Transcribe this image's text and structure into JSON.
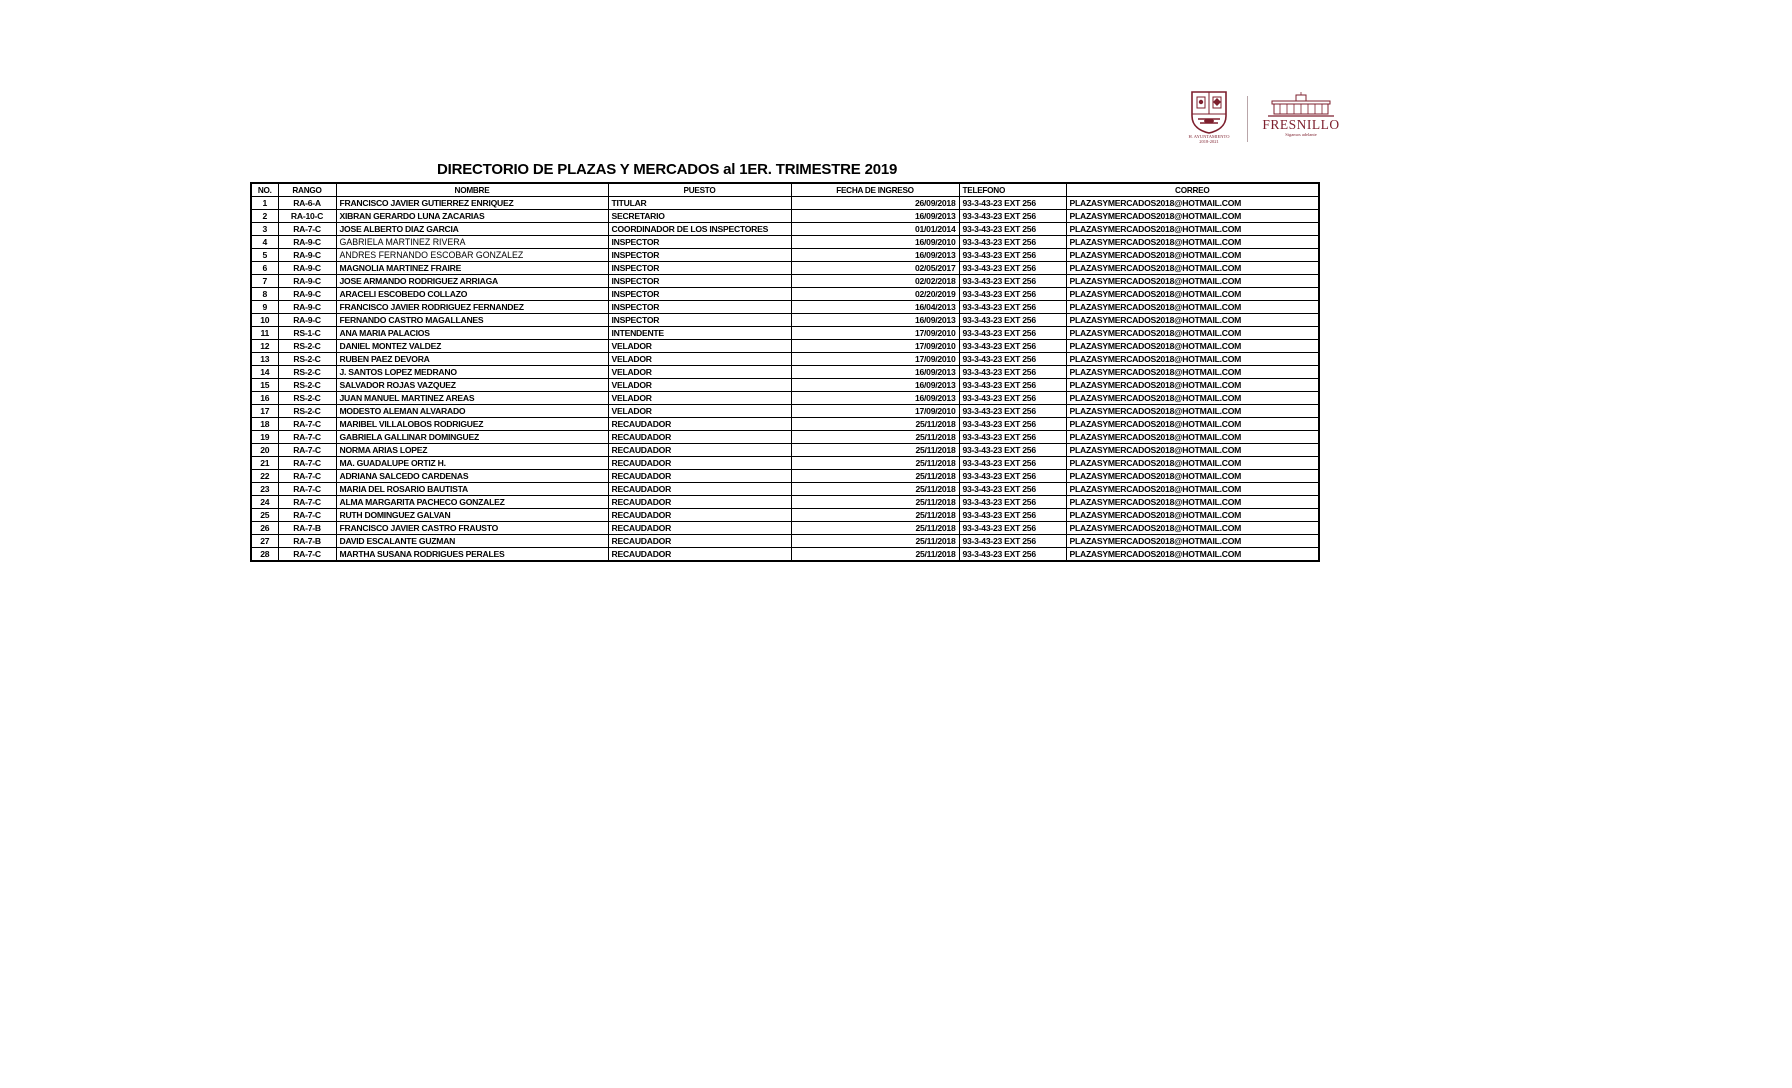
{
  "branding": {
    "brand_color": "#7d1f2d",
    "crest_icon": "municipal-coat-of-arms",
    "crest_caption_line1": "H. AYUNTAMIENTO",
    "crest_caption_line2": "2018-2021",
    "fresnillo_wordmark": "FRESNILLO",
    "fresnillo_tagline": "Sigamos adelante"
  },
  "title": "DIRECTORIO DE PLAZAS Y MERCADOS al 1ER. TRIMESTRE 2019",
  "table": {
    "columns": [
      "NO.",
      "RANGO",
      "NOMBRE",
      "PUESTO",
      "FECHA DE INGRESO",
      "TELEFONO",
      "CORREO"
    ],
    "rows": [
      {
        "no": "1",
        "rango": "RA-6-A",
        "nombre": "FRANCISCO JAVIER GUTIERREZ ENRIQUEZ",
        "puesto": "TITULAR",
        "fecha": "26/09/2018",
        "telefono": "93-3-43-23 EXT 256",
        "correo": "PLAZASYMERCADOS2018@HOTMAIL.COM",
        "light": false
      },
      {
        "no": "2",
        "rango": "RA-10-C",
        "nombre": "XIBRAN GERARDO LUNA ZACARIAS",
        "puesto": "SECRETARIO",
        "fecha": "16/09/2013",
        "telefono": "93-3-43-23 EXT 256",
        "correo": "PLAZASYMERCADOS2018@HOTMAIL.COM",
        "light": false
      },
      {
        "no": "3",
        "rango": "RA-7-C",
        "nombre": "JOSE ALBERTO DIAZ GARCIA",
        "puesto": "COORDINADOR DE LOS INSPECTORES",
        "fecha": "01/01/2014",
        "telefono": "93-3-43-23 EXT 256",
        "correo": "PLAZASYMERCADOS2018@HOTMAIL.COM",
        "light": false
      },
      {
        "no": "4",
        "rango": "RA-9-C",
        "nombre": "GABRIELA MARTINEZ RIVERA",
        "puesto": "INSPECTOR",
        "fecha": "16/09/2010",
        "telefono": "93-3-43-23 EXT 256",
        "correo": "PLAZASYMERCADOS2018@HOTMAIL.COM",
        "light": true
      },
      {
        "no": "5",
        "rango": "RA-9-C",
        "nombre": "ANDRES FERNANDO ESCOBAR GONZALEZ",
        "puesto": "INSPECTOR",
        "fecha": "16/09/2013",
        "telefono": "93-3-43-23 EXT 256",
        "correo": "PLAZASYMERCADOS2018@HOTMAIL.COM",
        "light": true
      },
      {
        "no": "6",
        "rango": "RA-9-C",
        "nombre": "MAGNOLIA MARTINEZ FRAIRE",
        "puesto": "INSPECTOR",
        "fecha": "02/05/2017",
        "telefono": "93-3-43-23 EXT 256",
        "correo": "PLAZASYMERCADOS2018@HOTMAIL.COM",
        "light": false
      },
      {
        "no": "7",
        "rango": "RA-9-C",
        "nombre": "JOSE ARMANDO RODRIGUEZ ARRIAGA",
        "puesto": "INSPECTOR",
        "fecha": "02/02/2018",
        "telefono": "93-3-43-23 EXT 256",
        "correo": "PLAZASYMERCADOS2018@HOTMAIL.COM",
        "light": false
      },
      {
        "no": "8",
        "rango": "RA-9-C",
        "nombre": "ARACELI ESCOBEDO COLLAZO",
        "puesto": "INSPECTOR",
        "fecha": "02/20/2019",
        "telefono": "93-3-43-23 EXT 256",
        "correo": "PLAZASYMERCADOS2018@HOTMAIL.COM",
        "light": false
      },
      {
        "no": "9",
        "rango": "RA-9-C",
        "nombre": "FRANCISCO JAVIER RODRIGUEZ FERNANDEZ",
        "puesto": "INSPECTOR",
        "fecha": "16/04/2013",
        "telefono": "93-3-43-23 EXT 256",
        "correo": "PLAZASYMERCADOS2018@HOTMAIL.COM",
        "light": false
      },
      {
        "no": "10",
        "rango": "RA-9-C",
        "nombre": "FERNANDO CASTRO MAGALLANES",
        "puesto": "INSPECTOR",
        "fecha": "16/09/2013",
        "telefono": "93-3-43-23 EXT 256",
        "correo": "PLAZASYMERCADOS2018@HOTMAIL.COM",
        "light": false
      },
      {
        "no": "11",
        "rango": "RS-1-C",
        "nombre": "ANA MARIA PALACIOS",
        "puesto": "INTENDENTE",
        "fecha": "17/09/2010",
        "telefono": "93-3-43-23 EXT 256",
        "correo": "PLAZASYMERCADOS2018@HOTMAIL.COM",
        "light": false
      },
      {
        "no": "12",
        "rango": "RS-2-C",
        "nombre": "DANIEL MONTEZ VALDEZ",
        "puesto": "VELADOR",
        "fecha": "17/09/2010",
        "telefono": "93-3-43-23 EXT 256",
        "correo": "PLAZASYMERCADOS2018@HOTMAIL.COM",
        "light": false
      },
      {
        "no": "13",
        "rango": "RS-2-C",
        "nombre": "RUBEN PAEZ DEVORA",
        "puesto": "VELADOR",
        "fecha": "17/09/2010",
        "telefono": "93-3-43-23 EXT 256",
        "correo": "PLAZASYMERCADOS2018@HOTMAIL.COM",
        "light": false
      },
      {
        "no": "14",
        "rango": "RS-2-C",
        "nombre": "J. SANTOS LOPEZ MEDRANO",
        "puesto": "VELADOR",
        "fecha": "16/09/2013",
        "telefono": "93-3-43-23 EXT 256",
        "correo": "PLAZASYMERCADOS2018@HOTMAIL.COM",
        "light": false
      },
      {
        "no": "15",
        "rango": "RS-2-C",
        "nombre": "SALVADOR ROJAS VAZQUEZ",
        "puesto": "VELADOR",
        "fecha": "16/09/2013",
        "telefono": "93-3-43-23 EXT 256",
        "correo": "PLAZASYMERCADOS2018@HOTMAIL.COM",
        "light": false
      },
      {
        "no": "16",
        "rango": "RS-2-C",
        "nombre": "JUAN MANUEL MARTINEZ AREAS",
        "puesto": "VELADOR",
        "fecha": "16/09/2013",
        "telefono": "93-3-43-23 EXT 256",
        "correo": "PLAZASYMERCADOS2018@HOTMAIL.COM",
        "light": false
      },
      {
        "no": "17",
        "rango": "RS-2-C",
        "nombre": "MODESTO ALEMAN ALVARADO",
        "puesto": "VELADOR",
        "fecha": "17/09/2010",
        "telefono": "93-3-43-23 EXT 256",
        "correo": "PLAZASYMERCADOS2018@HOTMAIL.COM",
        "light": false
      },
      {
        "no": "18",
        "rango": "RA-7-C",
        "nombre": "MARIBEL VILLALOBOS RODRIGUEZ",
        "puesto": "RECAUDADOR",
        "fecha": "25/11/2018",
        "telefono": "93-3-43-23 EXT 256",
        "correo": "PLAZASYMERCADOS2018@HOTMAIL.COM",
        "light": false
      },
      {
        "no": "19",
        "rango": "RA-7-C",
        "nombre": "GABRIELA GALLINAR DOMINGUEZ",
        "puesto": "RECAUDADOR",
        "fecha": "25/11/2018",
        "telefono": "93-3-43-23 EXT 256",
        "correo": "PLAZASYMERCADOS2018@HOTMAIL.COM",
        "light": false
      },
      {
        "no": "20",
        "rango": "RA-7-C",
        "nombre": "NORMA ARIAS LOPEZ",
        "puesto": "RECAUDADOR",
        "fecha": "25/11/2018",
        "telefono": "93-3-43-23 EXT 256",
        "correo": "PLAZASYMERCADOS2018@HOTMAIL.COM",
        "light": false
      },
      {
        "no": "21",
        "rango": "RA-7-C",
        "nombre": "MA. GUADALUPE ORTIZ H.",
        "puesto": "RECAUDADOR",
        "fecha": "25/11/2018",
        "telefono": "93-3-43-23 EXT 256",
        "correo": "PLAZASYMERCADOS2018@HOTMAIL.COM",
        "light": false
      },
      {
        "no": "22",
        "rango": "RA-7-C",
        "nombre": "ADRIANA SALCEDO CARDENAS",
        "puesto": "RECAUDADOR",
        "fecha": "25/11/2018",
        "telefono": "93-3-43-23 EXT 256",
        "correo": "PLAZASYMERCADOS2018@HOTMAIL.COM",
        "light": false
      },
      {
        "no": "23",
        "rango": "RA-7-C",
        "nombre": "MARIA DEL ROSARIO BAUTISTA",
        "puesto": "RECAUDADOR",
        "fecha": "25/11/2018",
        "telefono": "93-3-43-23 EXT 256",
        "correo": "PLAZASYMERCADOS2018@HOTMAIL.COM",
        "light": false
      },
      {
        "no": "24",
        "rango": "RA-7-C",
        "nombre": "ALMA MARGARITA PACHECO GONZALEZ",
        "puesto": "RECAUDADOR",
        "fecha": "25/11/2018",
        "telefono": "93-3-43-23 EXT 256",
        "correo": "PLAZASYMERCADOS2018@HOTMAIL.COM",
        "light": false
      },
      {
        "no": "25",
        "rango": "RA-7-C",
        "nombre": "RUTH DOMINGUEZ GALVAN",
        "puesto": "RECAUDADOR",
        "fecha": "25/11/2018",
        "telefono": "93-3-43-23 EXT 256",
        "correo": "PLAZASYMERCADOS2018@HOTMAIL.COM",
        "light": false
      },
      {
        "no": "26",
        "rango": "RA-7-B",
        "nombre": "FRANCISCO JAVIER CASTRO FRAUSTO",
        "puesto": "RECAUDADOR",
        "fecha": "25/11/2018",
        "telefono": "93-3-43-23 EXT 256",
        "correo": "PLAZASYMERCADOS2018@HOTMAIL.COM",
        "light": false
      },
      {
        "no": "27",
        "rango": "RA-7-B",
        "nombre": "DAVID ESCALANTE GUZMAN",
        "puesto": "RECAUDADOR",
        "fecha": "25/11/2018",
        "telefono": "93-3-43-23 EXT 256",
        "correo": "PLAZASYMERCADOS2018@HOTMAIL.COM",
        "light": false
      },
      {
        "no": "28",
        "rango": "RA-7-C",
        "nombre": "MARTHA SUSANA RODRIGUES PERALES",
        "puesto": "RECAUDADOR",
        "fecha": "25/11/2018",
        "telefono": "93-3-43-23 EXT 256",
        "correo": "PLAZASYMERCADOS2018@HOTMAIL.COM",
        "light": false
      }
    ]
  }
}
